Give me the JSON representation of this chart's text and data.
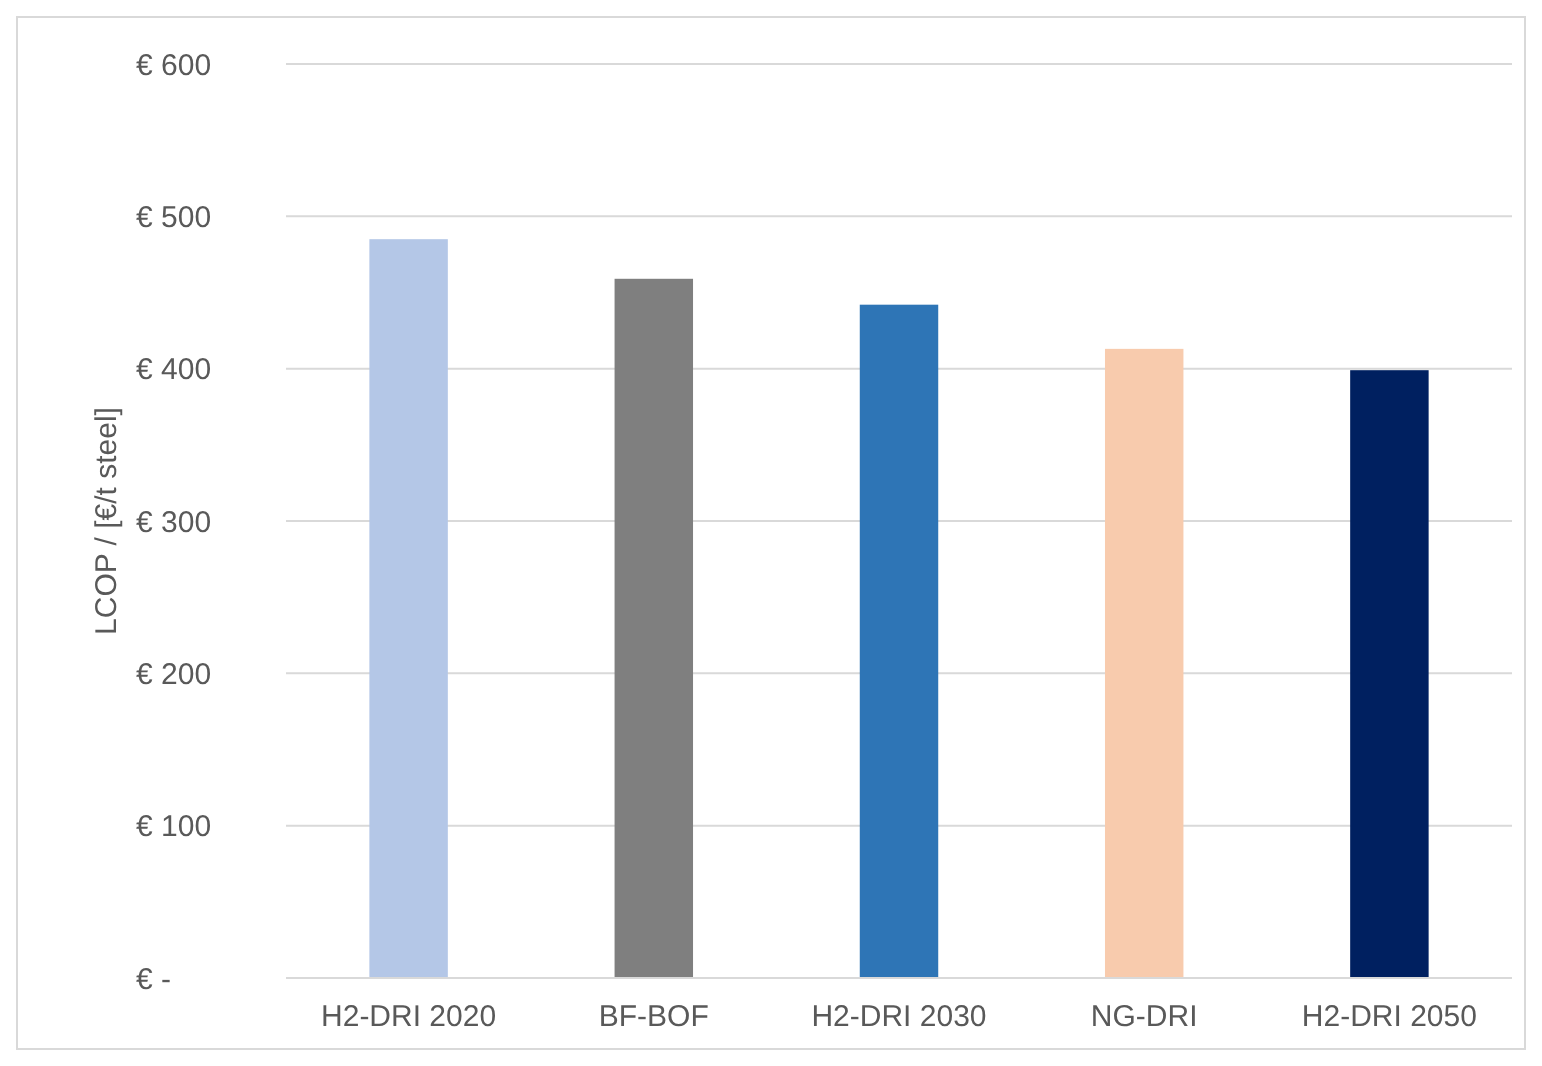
{
  "chart_data": {
    "type": "bar",
    "ylabel": "LCOP / [€/t steel]",
    "categories": [
      "H2-DRI 2020",
      "BF-BOF",
      "H2-DRI 2030",
      "NG-DRI",
      "H2-DRI 2050"
    ],
    "values": [
      485,
      459,
      442,
      413,
      399
    ],
    "colors": [
      "#b4c7e7",
      "#7f7f7f",
      "#2e75b6",
      "#f8cbad",
      "#002060"
    ],
    "ylim": [
      0,
      600
    ],
    "yticks": [
      {
        "value": 0,
        "label": "€ -"
      },
      {
        "value": 100,
        "label": "€ 100"
      },
      {
        "value": 200,
        "label": "€ 200"
      },
      {
        "value": 300,
        "label": "€ 300"
      },
      {
        "value": 400,
        "label": "€ 400"
      },
      {
        "value": 500,
        "label": "€ 500"
      },
      {
        "value": 600,
        "label": "€ 600"
      }
    ],
    "grid": "y"
  }
}
